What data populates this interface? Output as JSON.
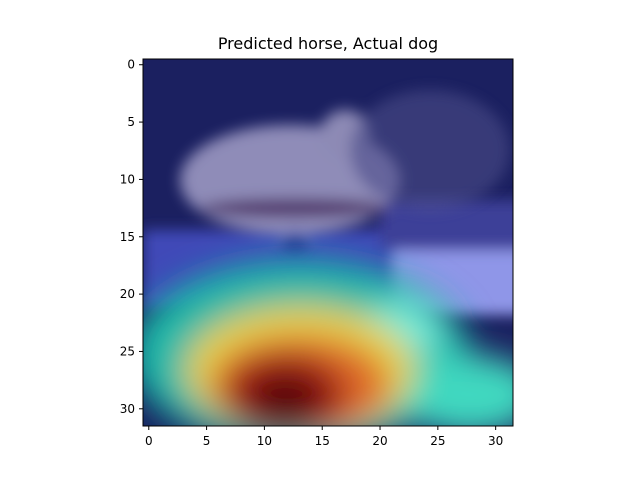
{
  "chart_data": {
    "type": "heatmap",
    "title": "Predicted horse, Actual dog",
    "xlabel": "",
    "ylabel": "",
    "grid": false,
    "xlim": [
      -0.5,
      31.5
    ],
    "ylim": [
      31.5,
      -0.5
    ],
    "x_ticks": [
      0,
      5,
      10,
      15,
      20,
      25,
      30
    ],
    "y_ticks": [
      0,
      5,
      10,
      15,
      20,
      25,
      30
    ],
    "colormap": "jet",
    "overlay": "activation heatmap blended over a blurred photo of a white dog",
    "heat_peak": {
      "x": 12,
      "y": 29,
      "intensity": 1.0
    },
    "heat_secondary": {
      "x": 19,
      "y": 28,
      "intensity": 0.75
    },
    "background_colors": {
      "dark": "#1a1f5e",
      "mid": "#4a4fb0",
      "light": "#9aa0e8"
    }
  }
}
